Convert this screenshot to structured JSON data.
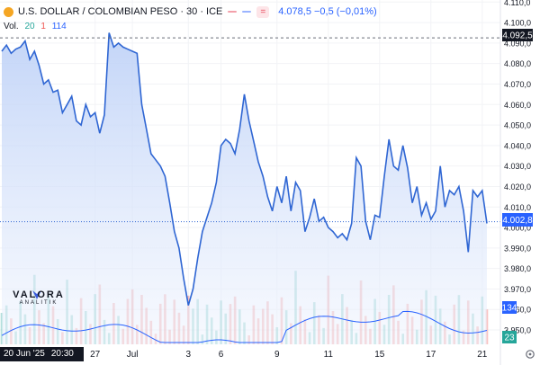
{
  "header": {
    "title": "U.S. DOLLAR / COLOMBIAN PESO · 30 · ICE",
    "sell_chip": "",
    "buy_chip": "",
    "eq_chip": "=",
    "quote": "4.078,5 −0,5 (−0,01%)"
  },
  "volume_legend": {
    "label": "Vol.",
    "v1": "20",
    "v2": "1",
    "v3": "114"
  },
  "brand": {
    "name": "VALORA",
    "sub": "ANALITIK"
  },
  "crosshair": {
    "date": "20 Jun '25",
    "time": "20:30"
  },
  "last_price_label": "4.002,8",
  "crosshair_price_label": "4.092,5",
  "volume_labels": {
    "a": "134",
    "b": "23"
  },
  "settings_icon": "gear-icon",
  "colors": {
    "line": "#2f66d3",
    "fill": "#dbe5fb",
    "vol_up": "#26a69a",
    "vol_down": "#ef5350",
    "ma": "#2962ff"
  },
  "chart_data": {
    "type": "area",
    "title": "U.S. DOLLAR / COLOMBIAN PESO · 30 · ICE",
    "xlabel": "",
    "ylabel": "",
    "ylim": [
      3943,
      4111
    ],
    "y_ticks": [
      "4.110,0",
      "4.100,0",
      "4.090,0",
      "4.080,0",
      "4.070,0",
      "4.060,0",
      "4.050,0",
      "4.040,0",
      "4.030,0",
      "4.020,0",
      "4.010,0",
      "4.000,0",
      "3.990,0",
      "3.980,0",
      "3.970,0",
      "3.960,0",
      "3.950,0"
    ],
    "y_tick_values": [
      4110,
      4100,
      4090,
      4080,
      4070,
      4060,
      4050,
      4040,
      4030,
      4020,
      4010,
      4000,
      3990,
      3980,
      3970,
      3960,
      3950
    ],
    "x_ticks": [
      {
        "label": "27",
        "i": 20
      },
      {
        "label": "Jul",
        "i": 28
      },
      {
        "label": "3",
        "i": 40
      },
      {
        "label": "6",
        "i": 47
      },
      {
        "label": "9",
        "i": 59
      },
      {
        "label": "11",
        "i": 70
      },
      {
        "label": "15",
        "i": 81
      },
      {
        "label": "17",
        "i": 92
      },
      {
        "label": "21",
        "i": 103
      }
    ],
    "n": 105,
    "price": [
      4086,
      4089,
      4085,
      4087,
      4088,
      4091,
      4082,
      4086,
      4079,
      4070,
      4072,
      4066,
      4067,
      4056,
      4060,
      4064,
      4052,
      4050,
      4060,
      4054,
      4056,
      4046,
      4055,
      4095,
      4088,
      4090,
      4088,
      4087,
      4086,
      4085,
      4060,
      4048,
      4036,
      4033,
      4030,
      4025,
      4012,
      3998,
      3990,
      3975,
      3962,
      3970,
      3985,
      3998,
      4005,
      4012,
      4022,
      4040,
      4043,
      4041,
      4036,
      4048,
      4065,
      4052,
      4042,
      4032,
      4025,
      4015,
      4008,
      4020,
      4012,
      4025,
      4008,
      4022,
      4018,
      3998,
      4005,
      4014,
      4003,
      4005,
      4000,
      3998,
      3995,
      3997,
      3994,
      4002,
      4034,
      4030,
      4003,
      3994,
      4006,
      4005,
      4025,
      4043,
      4030,
      4028,
      4040,
      4029,
      4012,
      4020,
      4006,
      4012,
      4004,
      4008,
      4030,
      4010,
      4018,
      4016,
      4020,
      4008,
      3988,
      4018,
      4015,
      4018,
      4002
    ]
  }
}
